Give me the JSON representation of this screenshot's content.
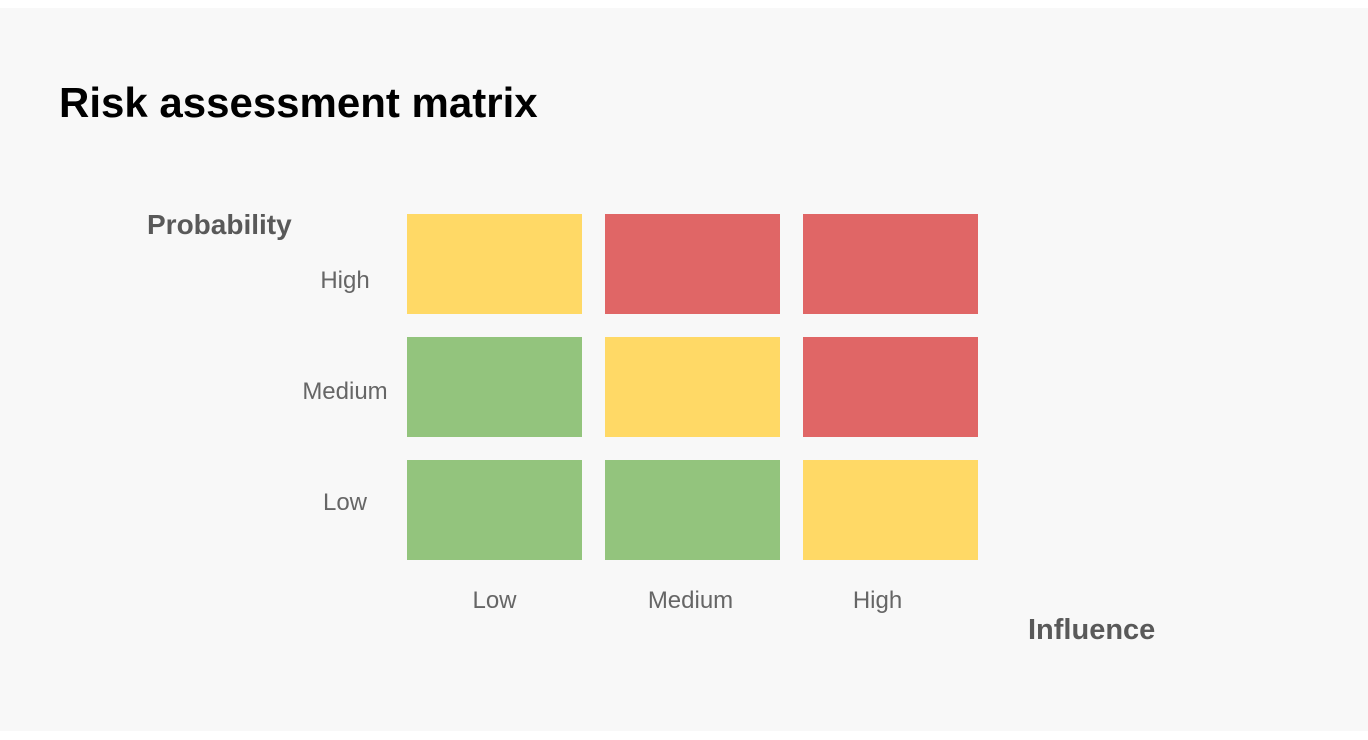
{
  "slide": {
    "title": "Risk assessment matrix"
  },
  "colors": {
    "slide_background": "#F8F8F8",
    "page_margin": "#FFFFFF",
    "title_text": "#000000",
    "axis_title_text": "#595959",
    "tick_label_text": "#666666",
    "risk_low": "#93C47D",
    "risk_medium": "#FFD966",
    "risk_high": "#E06666"
  },
  "matrix": {
    "y_axis": {
      "label": "Probability",
      "values": [
        "High",
        "Medium",
        "Low"
      ]
    },
    "x_axis": {
      "label": "Influence",
      "values": [
        "Low",
        "Medium",
        "High"
      ]
    },
    "cells": {
      "levels": [
        [
          "medium",
          "high",
          "high"
        ],
        [
          "low",
          "medium",
          "high"
        ],
        [
          "low",
          "low",
          "medium"
        ]
      ],
      "colors": [
        [
          "#FFD966",
          "#E06666",
          "#E06666"
        ],
        [
          "#93C47D",
          "#FFD966",
          "#E06666"
        ],
        [
          "#93C47D",
          "#93C47D",
          "#FFD966"
        ]
      ]
    }
  },
  "chart_data": {
    "type": "heatmap",
    "title": "Risk assessment matrix",
    "xlabel": "Influence",
    "ylabel": "Probability",
    "x_categories": [
      "Low",
      "Medium",
      "High"
    ],
    "y_categories": [
      "High",
      "Medium",
      "Low"
    ],
    "values": [
      [
        "medium",
        "high",
        "high"
      ],
      [
        "low",
        "medium",
        "high"
      ],
      [
        "low",
        "low",
        "medium"
      ]
    ],
    "color_map": {
      "low": "#93C47D",
      "medium": "#FFD966",
      "high": "#E06666"
    },
    "legend_position": "none",
    "grid": "off"
  }
}
